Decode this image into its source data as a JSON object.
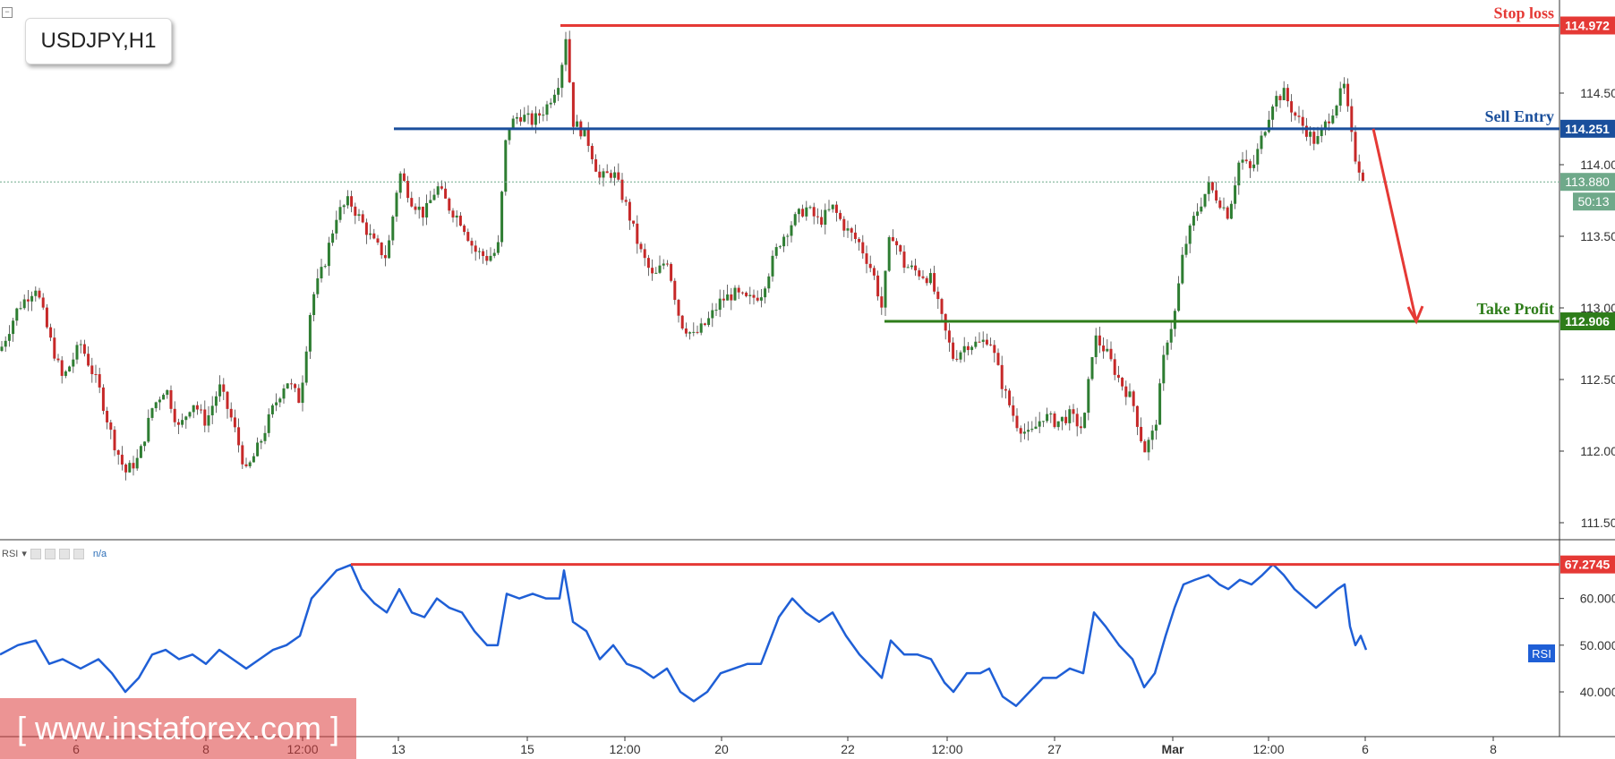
{
  "symbol_label": "USDJPY,H1",
  "rsi_panel": {
    "name": "RSI",
    "value": "n/a",
    "tag": "RSI"
  },
  "watermark": "[ www.instaforex.com ]",
  "countdown": "50:13",
  "colors": {
    "up": "#2e7d32",
    "down": "#c62828",
    "rsi": "#1f5fd6",
    "stop": "#e53935",
    "entry": "#1a4f9c",
    "tp": "#2e7d1a",
    "current": "#6fa98a"
  },
  "chart_data": {
    "type": "candlestick",
    "price_axis": {
      "ticks": [
        "111.500",
        "112.000",
        "112.500",
        "113.000",
        "113.500",
        "114.000",
        "114.500"
      ],
      "ylim": [
        111.4,
        115.1
      ]
    },
    "time_axis": {
      "ticks": [
        "6",
        "8",
        "12:00",
        "13",
        "15",
        "12:00",
        "20",
        "22",
        "12:00",
        "27",
        "Mar",
        "12:00",
        "6",
        "8"
      ]
    },
    "levels": [
      {
        "label": "Stop loss",
        "value": "114.972",
        "price": 114.972
      },
      {
        "label": "Sell Entry",
        "value": "114.251",
        "price": 114.251
      },
      {
        "label": "Take Profit",
        "value": "112.906",
        "price": 112.906
      }
    ],
    "current_price": {
      "value": "113.880",
      "price": 113.88
    },
    "price_path": [
      [
        0,
        112.7
      ],
      [
        20,
        113.0
      ],
      [
        40,
        113.15
      ],
      [
        55,
        112.8
      ],
      [
        70,
        112.5
      ],
      [
        90,
        112.75
      ],
      [
        110,
        112.45
      ],
      [
        125,
        112.1
      ],
      [
        140,
        111.85
      ],
      [
        155,
        111.95
      ],
      [
        170,
        112.3
      ],
      [
        185,
        112.45
      ],
      [
        200,
        112.15
      ],
      [
        215,
        112.35
      ],
      [
        230,
        112.2
      ],
      [
        245,
        112.45
      ],
      [
        260,
        112.2
      ],
      [
        275,
        111.85
      ],
      [
        290,
        112.05
      ],
      [
        305,
        112.3
      ],
      [
        320,
        112.5
      ],
      [
        335,
        112.35
      ],
      [
        348,
        113.05
      ],
      [
        362,
        113.3
      ],
      [
        376,
        113.65
      ],
      [
        390,
        113.75
      ],
      [
        404,
        113.6
      ],
      [
        418,
        113.45
      ],
      [
        432,
        113.35
      ],
      [
        446,
        113.95
      ],
      [
        460,
        113.75
      ],
      [
        474,
        113.65
      ],
      [
        488,
        113.85
      ],
      [
        502,
        113.7
      ],
      [
        516,
        113.6
      ],
      [
        530,
        113.4
      ],
      [
        544,
        113.35
      ],
      [
        556,
        113.4
      ],
      [
        566,
        114.25
      ],
      [
        580,
        114.35
      ],
      [
        595,
        114.3
      ],
      [
        610,
        114.4
      ],
      [
        625,
        114.6
      ],
      [
        632,
        114.9
      ],
      [
        640,
        114.3
      ],
      [
        655,
        114.2
      ],
      [
        670,
        113.9
      ],
      [
        685,
        113.95
      ],
      [
        700,
        113.7
      ],
      [
        715,
        113.4
      ],
      [
        730,
        113.2
      ],
      [
        745,
        113.35
      ],
      [
        760,
        112.9
      ],
      [
        775,
        112.8
      ],
      [
        790,
        112.9
      ],
      [
        805,
        113.05
      ],
      [
        820,
        113.1
      ],
      [
        835,
        113.05
      ],
      [
        850,
        113.1
      ],
      [
        870,
        113.45
      ],
      [
        885,
        113.6
      ],
      [
        900,
        113.7
      ],
      [
        915,
        113.6
      ],
      [
        930,
        113.7
      ],
      [
        945,
        113.55
      ],
      [
        960,
        113.45
      ],
      [
        975,
        113.25
      ],
      [
        985,
        113.0
      ],
      [
        995,
        113.55
      ],
      [
        1010,
        113.3
      ],
      [
        1025,
        113.25
      ],
      [
        1040,
        113.2
      ],
      [
        1055,
        112.85
      ],
      [
        1065,
        112.65
      ],
      [
        1080,
        112.75
      ],
      [
        1095,
        112.75
      ],
      [
        1105,
        112.8
      ],
      [
        1120,
        112.45
      ],
      [
        1135,
        112.2
      ],
      [
        1150,
        112.1
      ],
      [
        1165,
        112.25
      ],
      [
        1180,
        112.2
      ],
      [
        1195,
        112.25
      ],
      [
        1210,
        112.15
      ],
      [
        1222,
        112.8
      ],
      [
        1235,
        112.7
      ],
      [
        1250,
        112.5
      ],
      [
        1265,
        112.35
      ],
      [
        1278,
        112.0
      ],
      [
        1290,
        112.15
      ],
      [
        1302,
        112.75
      ],
      [
        1312,
        112.95
      ],
      [
        1322,
        113.4
      ],
      [
        1335,
        113.65
      ],
      [
        1350,
        113.85
      ],
      [
        1362,
        113.75
      ],
      [
        1372,
        113.65
      ],
      [
        1385,
        114.05
      ],
      [
        1398,
        113.95
      ],
      [
        1410,
        114.2
      ],
      [
        1422,
        114.45
      ],
      [
        1434,
        114.5
      ],
      [
        1446,
        114.35
      ],
      [
        1458,
        114.25
      ],
      [
        1470,
        114.15
      ],
      [
        1482,
        114.3
      ],
      [
        1494,
        114.45
      ],
      [
        1502,
        114.55
      ],
      [
        1508,
        114.25
      ],
      [
        1514,
        114.05
      ],
      [
        1520,
        113.95
      ],
      [
        1526,
        113.88
      ]
    ],
    "rsi": {
      "axis_ticks": [
        "40.0000",
        "50.0000",
        "60.0000"
      ],
      "ylim": [
        31,
        72
      ],
      "level": {
        "value": "67.2745",
        "y": 67.2745
      },
      "path": [
        [
          0,
          48
        ],
        [
          20,
          50
        ],
        [
          40,
          51
        ],
        [
          55,
          46
        ],
        [
          70,
          47
        ],
        [
          90,
          45
        ],
        [
          110,
          47
        ],
        [
          125,
          44
        ],
        [
          140,
          40
        ],
        [
          155,
          43
        ],
        [
          170,
          48
        ],
        [
          185,
          49
        ],
        [
          200,
          47
        ],
        [
          215,
          48
        ],
        [
          230,
          46
        ],
        [
          245,
          49
        ],
        [
          260,
          47
        ],
        [
          275,
          45
        ],
        [
          290,
          47
        ],
        [
          305,
          49
        ],
        [
          320,
          50
        ],
        [
          335,
          52
        ],
        [
          348,
          60
        ],
        [
          362,
          63
        ],
        [
          376,
          66
        ],
        [
          392,
          67.2
        ],
        [
          404,
          62
        ],
        [
          418,
          59
        ],
        [
          432,
          57
        ],
        [
          446,
          62
        ],
        [
          460,
          57
        ],
        [
          474,
          56
        ],
        [
          488,
          60
        ],
        [
          502,
          58
        ],
        [
          516,
          57
        ],
        [
          530,
          53
        ],
        [
          544,
          50
        ],
        [
          556,
          50
        ],
        [
          566,
          61
        ],
        [
          580,
          60
        ],
        [
          595,
          61
        ],
        [
          610,
          60
        ],
        [
          625,
          60
        ],
        [
          630,
          66
        ],
        [
          640,
          55
        ],
        [
          655,
          53
        ],
        [
          670,
          47
        ],
        [
          685,
          50
        ],
        [
          700,
          46
        ],
        [
          715,
          45
        ],
        [
          730,
          43
        ],
        [
          745,
          45
        ],
        [
          760,
          40
        ],
        [
          775,
          38
        ],
        [
          790,
          40
        ],
        [
          805,
          44
        ],
        [
          820,
          45
        ],
        [
          835,
          46
        ],
        [
          850,
          46
        ],
        [
          870,
          56
        ],
        [
          885,
          60
        ],
        [
          900,
          57
        ],
        [
          915,
          55
        ],
        [
          930,
          57
        ],
        [
          945,
          52
        ],
        [
          960,
          48
        ],
        [
          975,
          45
        ],
        [
          985,
          43
        ],
        [
          995,
          51
        ],
        [
          1010,
          48
        ],
        [
          1025,
          48
        ],
        [
          1040,
          47
        ],
        [
          1055,
          42
        ],
        [
          1065,
          40
        ],
        [
          1080,
          44
        ],
        [
          1095,
          44
        ],
        [
          1105,
          45
        ],
        [
          1120,
          39
        ],
        [
          1135,
          37
        ],
        [
          1150,
          40
        ],
        [
          1165,
          43
        ],
        [
          1180,
          43
        ],
        [
          1195,
          45
        ],
        [
          1210,
          44
        ],
        [
          1222,
          57
        ],
        [
          1235,
          54
        ],
        [
          1250,
          50
        ],
        [
          1265,
          47
        ],
        [
          1278,
          41
        ],
        [
          1290,
          44
        ],
        [
          1302,
          52
        ],
        [
          1312,
          58
        ],
        [
          1322,
          63
        ],
        [
          1335,
          64
        ],
        [
          1350,
          65
        ],
        [
          1362,
          63
        ],
        [
          1372,
          62
        ],
        [
          1385,
          64
        ],
        [
          1398,
          63
        ],
        [
          1410,
          65
        ],
        [
          1422,
          67.3
        ],
        [
          1434,
          65
        ],
        [
          1446,
          62
        ],
        [
          1458,
          60
        ],
        [
          1470,
          58
        ],
        [
          1482,
          60
        ],
        [
          1494,
          62
        ],
        [
          1502,
          63
        ],
        [
          1508,
          54
        ],
        [
          1514,
          50
        ],
        [
          1520,
          52
        ],
        [
          1526,
          49
        ]
      ]
    }
  }
}
